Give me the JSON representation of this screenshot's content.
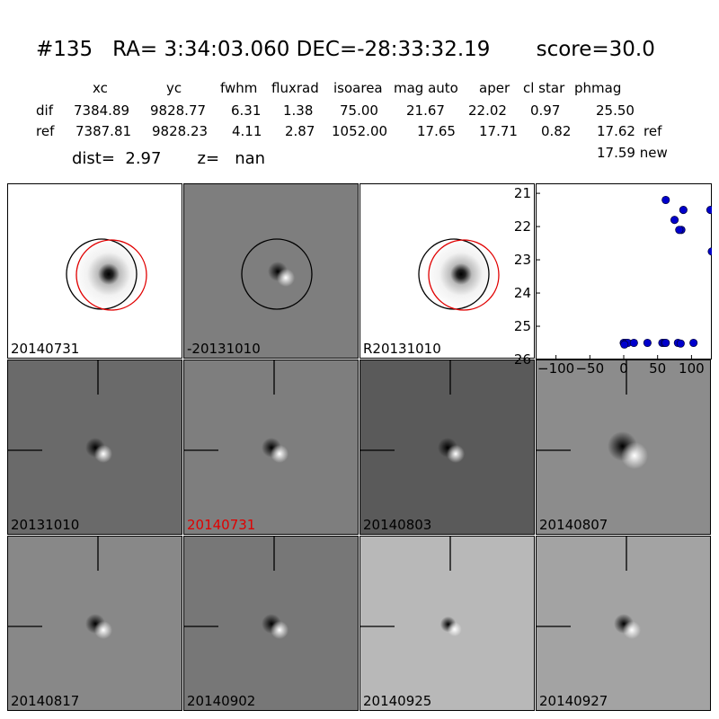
{
  "header": {
    "title": "#135   RA= 3:34:03.060 DEC=-28:33:32.19       score=30.0",
    "columns": [
      "xc",
      "yc",
      "fwhm",
      "fluxrad",
      "isoarea",
      "mag auto",
      "aper",
      "cl star",
      "phmag"
    ],
    "rows": [
      {
        "label": "dif",
        "values": [
          "7384.89",
          "9828.77",
          "6.31",
          "1.38",
          "75.00",
          "21.67",
          "22.02",
          "0.97",
          "25.50"
        ],
        "suffix": ""
      },
      {
        "label": "ref",
        "values": [
          "7387.81",
          "9828.23",
          "4.11",
          "2.87",
          "1052.00",
          "17.65",
          "17.71",
          "0.82",
          "17.62"
        ],
        "suffix": "ref"
      }
    ],
    "phmag_new": "17.59 new",
    "dist_line": "dist=  2.97       z=   nan"
  },
  "panels": [
    {
      "label": "20140731",
      "bg": "#ffffff",
      "type": "star",
      "circle_black": true,
      "circle_red": true,
      "label_color": "black"
    },
    {
      "label": "-20131010",
      "bg": "#7e7e7e",
      "type": "dipole",
      "circle_black": true,
      "circle_red": false,
      "label_color": "black"
    },
    {
      "label": "R20131010",
      "bg": "#ffffff",
      "type": "star",
      "circle_black": true,
      "circle_red": true,
      "label_color": "black"
    },
    {
      "label": "20131010",
      "bg": "#6a6a6a",
      "type": "dipole",
      "label_color": "black",
      "crosshair": true
    },
    {
      "label": "20140731",
      "bg": "#7e7e7e",
      "type": "dipole",
      "label_color": "red",
      "crosshair": true
    },
    {
      "label": "20140803",
      "bg": "#5a5a5a",
      "type": "dipole",
      "label_color": "black",
      "crosshair": true
    },
    {
      "label": "20140807",
      "bg": "#8c8c8c",
      "type": "dipole_big",
      "label_color": "black",
      "crosshair": true
    },
    {
      "label": "20140817",
      "bg": "#888888",
      "type": "dipole",
      "label_color": "black",
      "crosshair": true
    },
    {
      "label": "20140902",
      "bg": "#777777",
      "type": "dipole",
      "label_color": "black",
      "crosshair": true
    },
    {
      "label": "20140925",
      "bg": "#b8b8b8",
      "type": "dipole_small",
      "label_color": "black",
      "crosshair": true
    },
    {
      "label": "20140927",
      "bg": "#a3a3a3",
      "type": "dipole",
      "label_color": "black",
      "crosshair": true
    }
  ],
  "chart_data": {
    "type": "scatter",
    "xlim": [
      -130,
      130
    ],
    "ylim": [
      26,
      20.7
    ],
    "xticks": [
      -100,
      -50,
      0,
      50,
      100
    ],
    "yticks": [
      21,
      22,
      23,
      24,
      25,
      26
    ],
    "xtick_labels": [
      "−100",
      "−50",
      "0",
      "50",
      "100"
    ],
    "ytick_labels": [
      "21",
      "22",
      "23",
      "24",
      "25",
      "26"
    ],
    "color": "#0000cc",
    "points_x": [
      0,
      3,
      6,
      15,
      35,
      57,
      60,
      62,
      75,
      80,
      85,
      88,
      103,
      128,
      130,
      1,
      62,
      82,
      84
    ],
    "points_y": [
      25.5,
      25.5,
      25.5,
      25.5,
      25.5,
      25.5,
      25.5,
      25.5,
      21.8,
      25.5,
      22.1,
      21.5,
      25.5,
      21.5,
      22.75,
      25.55,
      21.2,
      22.1,
      25.52
    ]
  }
}
